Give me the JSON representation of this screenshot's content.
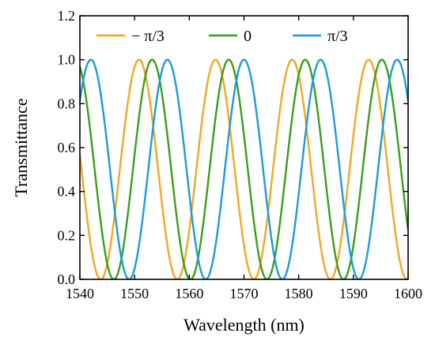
{
  "chart_data": {
    "type": "line",
    "title": "",
    "xlabel": "Wavelength (nm)",
    "ylabel": "Transmittance",
    "xlim": [
      1540,
      1600
    ],
    "ylim": [
      0.0,
      1.2
    ],
    "xticks": [
      1540,
      1550,
      1560,
      1570,
      1580,
      1590,
      1600
    ],
    "yticks": [
      0.0,
      0.2,
      0.4,
      0.6,
      0.8,
      1.0,
      1.2
    ],
    "xtick_labels": [
      "1540",
      "1550",
      "1560",
      "1570",
      "1580",
      "1590",
      "1600"
    ],
    "ytick_labels": [
      "0.0",
      "0.2",
      "0.4",
      "0.6",
      "0.8",
      "1.0",
      "1.2"
    ],
    "grid": false,
    "legend_position": "top",
    "legend_orientation": "horizontal",
    "series": [
      {
        "name": "− π/3",
        "color": "#f5a623",
        "function": "cos^2",
        "period_nm": 14.0,
        "peak_wavelengths_nm": [
          1550.8,
          1564.8,
          1578.8,
          1592.8
        ],
        "min_value": 0.0,
        "max_value": 1.0
      },
      {
        "name": "0",
        "color": "#3a9e1a",
        "function": "cos^2",
        "period_nm": 14.0,
        "peak_wavelengths_nm": [
          1539.2,
          1553.2,
          1567.2,
          1581.2,
          1595.2
        ],
        "min_value": 0.0,
        "max_value": 1.0
      },
      {
        "name": "π/3",
        "color": "#1a9be0",
        "function": "cos^2",
        "period_nm": 14.0,
        "peak_wavelengths_nm": [
          1542.0,
          1556.0,
          1570.0,
          1584.0,
          1598.0
        ],
        "min_value": 0.0,
        "max_value": 1.0
      }
    ]
  }
}
